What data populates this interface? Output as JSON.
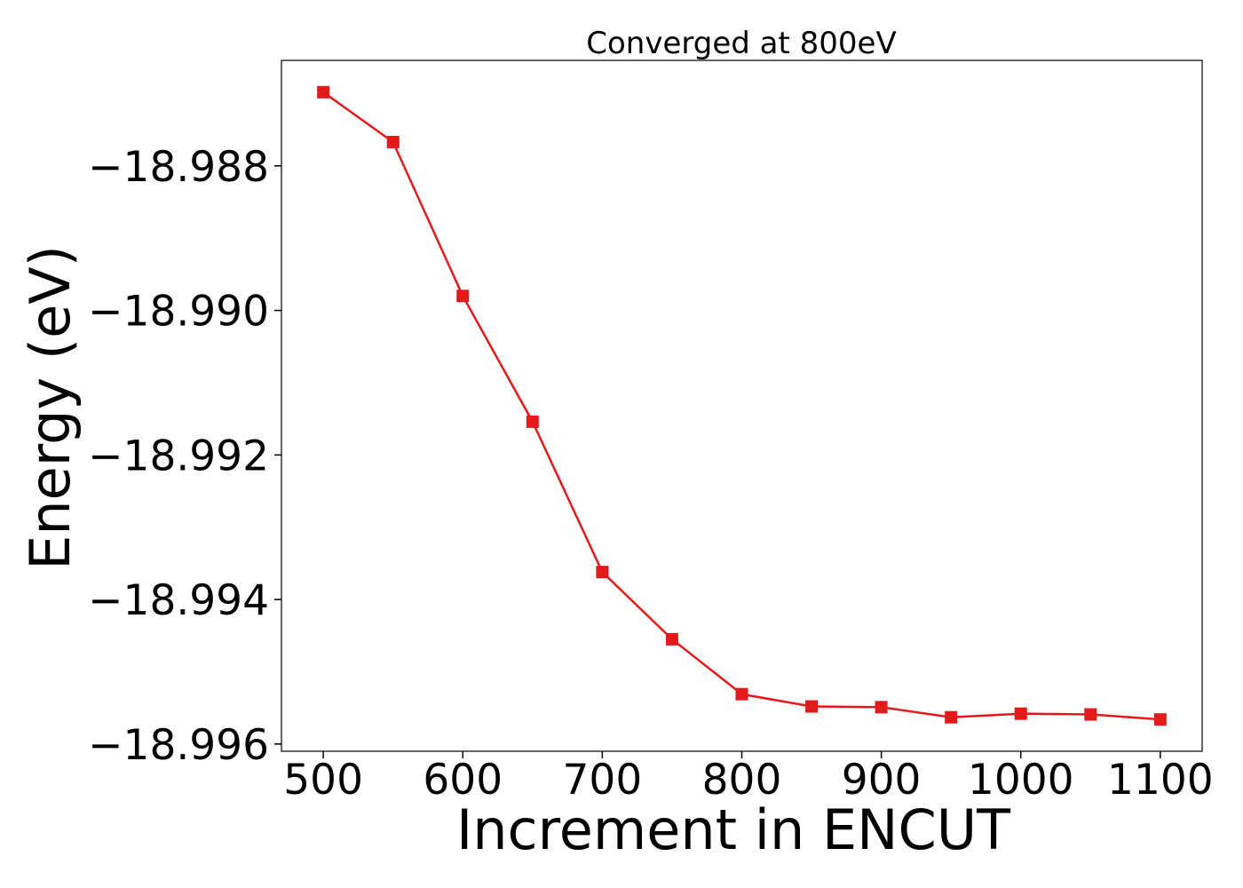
{
  "chart_data": {
    "type": "line",
    "title": "Converged at 800eV",
    "xlabel": "Increment in ENCUT",
    "ylabel": "Energy (eV)",
    "x": [
      500,
      550,
      600,
      650,
      700,
      750,
      800,
      850,
      900,
      950,
      1000,
      1050,
      1100
    ],
    "series": [
      {
        "values": [
          -18.98698,
          -18.98767,
          -18.9898,
          -18.99154,
          -18.99362,
          -18.99455,
          -18.99531,
          -18.99548,
          -18.99549,
          -18.99563,
          -18.99558,
          -18.99559,
          -18.99566
        ],
        "color": "#e31a1c",
        "marker": "square"
      }
    ],
    "xlim": [
      470,
      1130
    ],
    "ylim": [
      -18.9961,
      -18.98654
    ],
    "xticks": [
      500,
      600,
      700,
      800,
      900,
      1000,
      1100
    ],
    "xtick_labels": [
      "500",
      "600",
      "700",
      "800",
      "900",
      "1000",
      "1100"
    ],
    "yticks": [
      -18.988,
      -18.99,
      -18.992,
      -18.994,
      -18.996
    ],
    "ytick_labels": [
      "−18.988",
      "−18.990",
      "−18.992",
      "−18.994",
      "−18.996"
    ],
    "grid": false,
    "legend": false
  }
}
